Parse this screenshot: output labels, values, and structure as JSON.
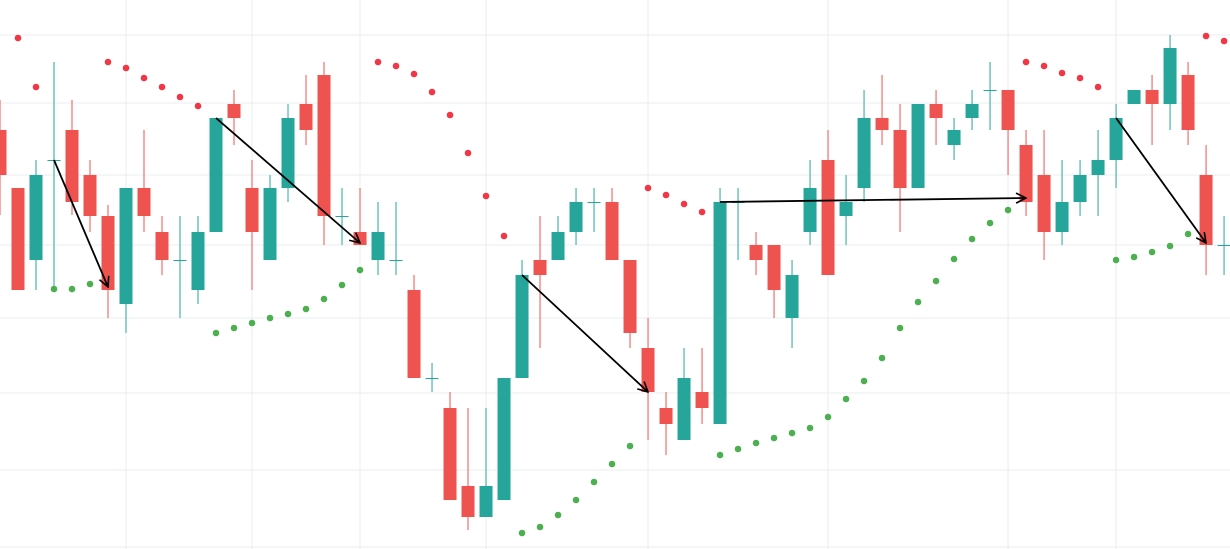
{
  "chart_data": {
    "type": "candlestick",
    "xlim": [
      0,
      68.33
    ],
    "ylim": [
      0,
      549
    ],
    "xticks": [
      7,
      14,
      20,
      27,
      36,
      46,
      56,
      62
    ],
    "yticks": [
      2,
      79,
      156,
      231,
      304,
      374,
      446,
      514
    ],
    "grid": true,
    "up_color": "#26a69a",
    "down_color": "#ef5350",
    "open": [
      419,
      361,
      289,
      389,
      419,
      374,
      333,
      245,
      361,
      317,
      289,
      259,
      317,
      445,
      361,
      289,
      361,
      445,
      474,
      333,
      317,
      289,
      289,
      259,
      171,
      141,
      63,
      32,
      49,
      171,
      289,
      289,
      317,
      347,
      347,
      289,
      201,
      141,
      109,
      157,
      125,
      347,
      304,
      304,
      231,
      317,
      389,
      333,
      361,
      431,
      419,
      361,
      445,
      404,
      431,
      459,
      459,
      404,
      374,
      317,
      347,
      374,
      389,
      445,
      459,
      445,
      474,
      374,
      304
    ],
    "high": [
      449,
      361,
      389,
      487,
      449,
      389,
      344,
      361,
      419,
      333,
      333,
      333,
      431,
      459,
      389,
      374,
      445,
      474,
      487,
      361,
      361,
      347,
      347,
      274,
      186,
      157,
      141,
      141,
      171,
      289,
      333,
      333,
      361,
      361,
      361,
      289,
      231,
      157,
      201,
      201,
      361,
      361,
      317,
      304,
      289,
      389,
      419,
      374,
      459,
      474,
      445,
      445,
      459,
      431,
      459,
      487,
      459,
      419,
      419,
      389,
      389,
      419,
      445,
      459,
      474,
      514,
      487,
      404,
      333
    ],
    "low": [
      334,
      259,
      259,
      259,
      334,
      317,
      231,
      216,
      317,
      274,
      231,
      245,
      317,
      404,
      259,
      289,
      347,
      404,
      304,
      304,
      304,
      274,
      274,
      171,
      157,
      49,
      19,
      32,
      49,
      171,
      201,
      289,
      304,
      317,
      289,
      201,
      109,
      94,
      109,
      125,
      125,
      289,
      274,
      231,
      201,
      304,
      274,
      304,
      347,
      404,
      317,
      361,
      404,
      389,
      419,
      419,
      374,
      333,
      289,
      304,
      333,
      333,
      361,
      445,
      404,
      419,
      404,
      274,
      274
    ],
    "close": [
      374,
      259,
      374,
      389,
      347,
      333,
      259,
      361,
      333,
      289,
      289,
      317,
      431,
      431,
      317,
      361,
      431,
      419,
      333,
      333,
      304,
      317,
      289,
      171,
      171,
      49,
      32,
      63,
      171,
      274,
      274,
      317,
      347,
      347,
      289,
      216,
      157,
      125,
      171,
      141,
      347,
      347,
      289,
      259,
      274,
      361,
      274,
      347,
      431,
      419,
      361,
      445,
      431,
      419,
      445,
      459,
      419,
      347,
      317,
      347,
      374,
      389,
      431,
      459,
      445,
      501,
      419,
      304,
      304
    ],
    "sar_bearish": {
      "color": "#f23645",
      "values": [
        null,
        511,
        462,
        null,
        null,
        null,
        487,
        481,
        471,
        462,
        452,
        443,
        null,
        null,
        null,
        null,
        null,
        null,
        null,
        null,
        null,
        487,
        483,
        475,
        457,
        434,
        396,
        353,
        313,
        null,
        null,
        null,
        null,
        null,
        null,
        null,
        361,
        354,
        345,
        337,
        null,
        null,
        null,
        null,
        null,
        null,
        null,
        null,
        null,
        null,
        null,
        null,
        null,
        null,
        null,
        null,
        null,
        487,
        483,
        476,
        471,
        462,
        null,
        null,
        null,
        null,
        null,
        513,
        508
      ]
    },
    "sar_bullish": {
      "color": "#4caf50",
      "values": [
        null,
        null,
        null,
        260,
        260,
        265,
        null,
        null,
        null,
        null,
        null,
        null,
        216,
        221,
        226,
        231,
        235,
        240,
        250,
        264,
        279,
        null,
        null,
        null,
        null,
        null,
        null,
        null,
        null,
        16,
        22,
        34,
        49,
        67,
        85,
        103,
        null,
        null,
        null,
        null,
        94,
        100,
        106,
        111,
        116,
        121,
        132,
        150,
        168,
        191,
        221,
        247,
        268,
        290,
        310,
        326,
        339,
        null,
        null,
        null,
        null,
        null,
        289,
        292,
        297,
        303,
        315,
        null,
        null
      ]
    },
    "arrows": [
      {
        "from": [
          3,
          389
        ],
        "to": [
          6,
          262
        ]
      },
      {
        "from": [
          12,
          431
        ],
        "to": [
          20,
          306
        ]
      },
      {
        "from": [
          29,
          274
        ],
        "to": [
          36,
          157
        ]
      },
      {
        "from": [
          40,
          347
        ],
        "to": [
          57,
          351
        ]
      },
      {
        "from": [
          62,
          431
        ],
        "to": [
          67,
          306
        ]
      }
    ]
  }
}
